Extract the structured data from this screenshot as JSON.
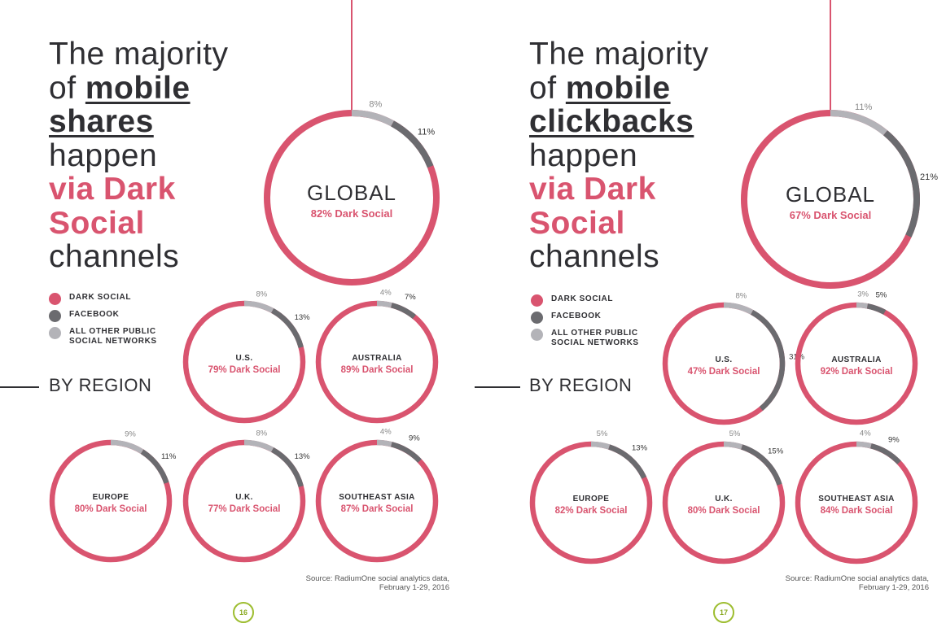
{
  "colors": {
    "dark_social": "#d9546f",
    "facebook": "#6b6b6f",
    "other": "#b3b3b8",
    "text": "#2f2f33",
    "page_number": "#9dbd2f"
  },
  "pages": [
    {
      "headline": {
        "line1": "The majority",
        "line2_pre": "of ",
        "line2_bold": "mobile",
        "line3_bold": "shares",
        "line4": "happen",
        "line5_pink": "via Dark",
        "line6_pink": "Social",
        "line7": "channels"
      },
      "legend": [
        {
          "label": "DARK SOCIAL",
          "color": "#d9546f"
        },
        {
          "label": "FACEBOOK",
          "color": "#6b6b6f"
        },
        {
          "label": "ALL OTHER PUBLIC SOCIAL NETWORKS",
          "color": "#b3b3b8"
        }
      ],
      "region_heading": "BY REGION",
      "source": "Source: RadiumOne social analytics data, February 1-29, 2016",
      "page_number": "16"
    },
    {
      "headline": {
        "line1": "The majority",
        "line2_pre": "of ",
        "line2_bold": "mobile",
        "line3_bold": "clickbacks",
        "line4": "happen",
        "line5_pink": "via Dark",
        "line6_pink": "Social",
        "line7": "channels"
      },
      "legend": [
        {
          "label": "DARK SOCIAL",
          "color": "#d9546f"
        },
        {
          "label": "FACEBOOK",
          "color": "#6b6b6f"
        },
        {
          "label": "ALL OTHER PUBLIC SOCIAL NETWORKS",
          "color": "#b3b3b8"
        }
      ],
      "region_heading": "BY REGION",
      "source": "Source: RadiumOne social analytics data, February 1-29, 2016",
      "page_number": "17"
    }
  ],
  "chart_data": [
    {
      "type": "pie",
      "page": "shares",
      "title": "GLOBAL",
      "subtitle": "82% Dark Social",
      "series": [
        {
          "name": "DARK SOCIAL",
          "value": 82
        },
        {
          "name": "FACEBOOK",
          "value": 11
        },
        {
          "name": "ALL OTHER PUBLIC SOCIAL NETWORKS",
          "value": 8
        }
      ],
      "labels": {
        "other": "8%",
        "facebook": "11%"
      }
    },
    {
      "type": "pie",
      "page": "shares",
      "title": "U.S.",
      "subtitle": "79% Dark Social",
      "series": [
        {
          "name": "DARK SOCIAL",
          "value": 79
        },
        {
          "name": "FACEBOOK",
          "value": 13
        },
        {
          "name": "ALL OTHER PUBLIC SOCIAL NETWORKS",
          "value": 8
        }
      ],
      "labels": {
        "other": "8%",
        "facebook": "13%"
      }
    },
    {
      "type": "pie",
      "page": "shares",
      "title": "AUSTRALIA",
      "subtitle": "89% Dark Social",
      "series": [
        {
          "name": "DARK SOCIAL",
          "value": 89
        },
        {
          "name": "FACEBOOK",
          "value": 7
        },
        {
          "name": "ALL OTHER PUBLIC SOCIAL NETWORKS",
          "value": 4
        }
      ],
      "labels": {
        "other": "4%",
        "facebook": "7%"
      }
    },
    {
      "type": "pie",
      "page": "shares",
      "title": "EUROPE",
      "subtitle": "80% Dark Social",
      "series": [
        {
          "name": "DARK SOCIAL",
          "value": 80
        },
        {
          "name": "FACEBOOK",
          "value": 11
        },
        {
          "name": "ALL OTHER PUBLIC SOCIAL NETWORKS",
          "value": 9
        }
      ],
      "labels": {
        "other": "9%",
        "facebook": "11%"
      }
    },
    {
      "type": "pie",
      "page": "shares",
      "title": "U.K.",
      "subtitle": "77% Dark Social",
      "series": [
        {
          "name": "DARK SOCIAL",
          "value": 77
        },
        {
          "name": "FACEBOOK",
          "value": 13
        },
        {
          "name": "ALL OTHER PUBLIC SOCIAL NETWORKS",
          "value": 8
        }
      ],
      "labels": {
        "other": "8%",
        "facebook": "13%"
      }
    },
    {
      "type": "pie",
      "page": "shares",
      "title": "SOUTHEAST ASIA",
      "subtitle": "87% Dark Social",
      "series": [
        {
          "name": "DARK SOCIAL",
          "value": 87
        },
        {
          "name": "FACEBOOK",
          "value": 9
        },
        {
          "name": "ALL OTHER PUBLIC SOCIAL NETWORKS",
          "value": 4
        }
      ],
      "labels": {
        "other": "4%",
        "facebook": "9%"
      }
    },
    {
      "type": "pie",
      "page": "clickbacks",
      "title": "GLOBAL",
      "subtitle": "67% Dark Social",
      "series": [
        {
          "name": "DARK SOCIAL",
          "value": 67
        },
        {
          "name": "FACEBOOK",
          "value": 21
        },
        {
          "name": "ALL OTHER PUBLIC SOCIAL NETWORKS",
          "value": 11
        }
      ],
      "labels": {
        "other": "11%",
        "facebook": "21%"
      }
    },
    {
      "type": "pie",
      "page": "clickbacks",
      "title": "U.S.",
      "subtitle": "47% Dark Social",
      "series": [
        {
          "name": "DARK SOCIAL",
          "value": 47
        },
        {
          "name": "FACEBOOK",
          "value": 31
        },
        {
          "name": "ALL OTHER PUBLIC SOCIAL NETWORKS",
          "value": 8
        }
      ],
      "labels": {
        "other": "8%",
        "facebook": "31%"
      }
    },
    {
      "type": "pie",
      "page": "clickbacks",
      "title": "AUSTRALIA",
      "subtitle": "92% Dark Social",
      "series": [
        {
          "name": "DARK SOCIAL",
          "value": 92
        },
        {
          "name": "FACEBOOK",
          "value": 5
        },
        {
          "name": "ALL OTHER PUBLIC SOCIAL NETWORKS",
          "value": 3
        }
      ],
      "labels": {
        "other": "3%",
        "facebook": "5%"
      }
    },
    {
      "type": "pie",
      "page": "clickbacks",
      "title": "EUROPE",
      "subtitle": "82% Dark Social",
      "series": [
        {
          "name": "DARK SOCIAL",
          "value": 82
        },
        {
          "name": "FACEBOOK",
          "value": 13
        },
        {
          "name": "ALL OTHER PUBLIC SOCIAL NETWORKS",
          "value": 5
        }
      ],
      "labels": {
        "other": "5%",
        "facebook": "13%"
      }
    },
    {
      "type": "pie",
      "page": "clickbacks",
      "title": "U.K.",
      "subtitle": "80% Dark Social",
      "series": [
        {
          "name": "DARK SOCIAL",
          "value": 80
        },
        {
          "name": "FACEBOOK",
          "value": 15
        },
        {
          "name": "ALL OTHER PUBLIC SOCIAL NETWORKS",
          "value": 5
        }
      ],
      "labels": {
        "other": "5%",
        "facebook": "15%"
      }
    },
    {
      "type": "pie",
      "page": "clickbacks",
      "title": "SOUTHEAST ASIA",
      "subtitle": "84% Dark Social",
      "series": [
        {
          "name": "DARK SOCIAL",
          "value": 84
        },
        {
          "name": "FACEBOOK",
          "value": 9
        },
        {
          "name": "ALL OTHER PUBLIC SOCIAL NETWORKS",
          "value": 4
        }
      ],
      "labels": {
        "other": "4%",
        "facebook": "9%"
      }
    }
  ]
}
